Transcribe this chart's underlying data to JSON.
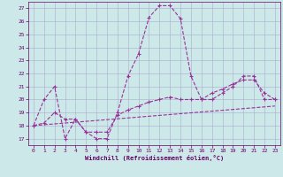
{
  "xlabel": "Windchill (Refroidissement éolien,°C)",
  "background_color": "#cce8e8",
  "grid_color": "#aaaacc",
  "line_color": "#993399",
  "xlim": [
    -0.5,
    23.5
  ],
  "ylim": [
    16.5,
    27.5
  ],
  "yticks": [
    17,
    18,
    19,
    20,
    21,
    22,
    23,
    24,
    25,
    26,
    27
  ],
  "xticks": [
    0,
    1,
    2,
    3,
    4,
    5,
    6,
    7,
    8,
    9,
    10,
    11,
    12,
    13,
    14,
    15,
    16,
    17,
    18,
    19,
    20,
    21,
    22,
    23
  ],
  "line1_x": [
    0,
    1,
    2,
    3,
    4,
    5,
    6,
    7,
    8,
    9,
    10,
    11,
    12,
    13,
    14,
    15,
    16,
    17,
    18,
    19,
    20,
    21,
    22,
    23
  ],
  "line1_y": [
    18.0,
    20.0,
    21.0,
    17.0,
    18.5,
    17.5,
    17.0,
    17.0,
    19.0,
    21.8,
    23.5,
    26.3,
    27.2,
    27.2,
    26.2,
    21.8,
    20.0,
    20.0,
    20.5,
    21.0,
    21.8,
    21.8,
    20.0,
    20.0
  ],
  "line2_x": [
    0,
    1,
    2,
    3,
    4,
    5,
    6,
    7,
    8,
    9,
    10,
    11,
    12,
    13,
    14,
    15,
    16,
    17,
    18,
    19,
    20,
    21,
    22,
    23
  ],
  "line2_y": [
    18.0,
    18.2,
    19.0,
    18.5,
    18.5,
    17.5,
    17.5,
    17.5,
    18.8,
    19.2,
    19.5,
    19.8,
    20.0,
    20.2,
    20.0,
    20.0,
    20.0,
    20.5,
    20.8,
    21.2,
    21.5,
    21.5,
    20.5,
    20.0
  ],
  "line3_x": [
    0,
    23
  ],
  "line3_y": [
    18.0,
    19.5
  ]
}
